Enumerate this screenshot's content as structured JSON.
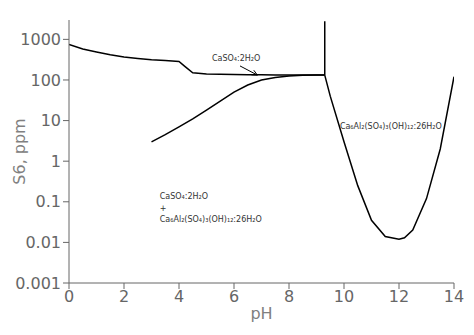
{
  "chart_data": {
    "type": "line",
    "log": "y",
    "xlabel": "pH",
    "ylabel": "S6, ppm",
    "xlim": [
      0,
      14
    ],
    "ylim": [
      0.001,
      3000
    ],
    "xticks": [
      0,
      2,
      4,
      6,
      8,
      10,
      12,
      14
    ],
    "yticks": [
      0.001,
      0.01,
      0.1,
      1,
      10,
      100,
      1000
    ],
    "grid": false,
    "color": "black",
    "series": [
      {
        "x": [
          0,
          0.5,
          1.0,
          1.5,
          2.0,
          2.5,
          3.0,
          3.5,
          4.0,
          4.2,
          4.5,
          5.0,
          5.5,
          6.0,
          6.5,
          7.0,
          7.5,
          8.0,
          8.5,
          9.0,
          9.3
        ],
        "values": [
          750,
          580,
          490,
          420,
          370,
          340,
          315,
          300,
          285,
          220,
          150,
          140,
          138,
          136,
          135,
          134,
          133,
          132,
          132,
          132,
          132
        ]
      },
      {
        "x": [
          3.0,
          3.5,
          4.0,
          4.5,
          5.0,
          5.5,
          6.0,
          6.5,
          7.0,
          7.5,
          8.0,
          8.5,
          9.0,
          9.3
        ],
        "values": [
          3.0,
          4.5,
          7.0,
          11,
          18,
          30,
          50,
          75,
          100,
          115,
          125,
          130,
          132,
          132
        ]
      },
      {
        "x": [
          9.3,
          9.3
        ],
        "values": [
          132,
          2800
        ]
      },
      {
        "x": [
          9.3,
          9.5,
          10.0,
          10.5,
          11.0,
          11.5,
          12.0,
          12.2,
          12.5,
          13.0,
          13.5,
          14.0
        ],
        "values": [
          132,
          40,
          3.0,
          0.25,
          0.035,
          0.014,
          0.012,
          0.013,
          0.02,
          0.12,
          2.0,
          120
        ]
      }
    ],
    "annotations": [
      {
        "text": "CaSO₄:2H₂O",
        "x": 5.2,
        "y": 330,
        "arrow_x": 6.85,
        "arrow_y": 132
      },
      {
        "text": "Ca₆Al₂(SO₄)₃(OH)₁₂:26H₂O",
        "x": 9.85,
        "y": 7.0
      },
      {
        "lines": [
          "CaSO₄:2H₂O",
          "+",
          "Ca₆Al₂(SO₄)₃(OH)₁₂:26H₂O"
        ],
        "x": 3.3,
        "y": 0.07
      }
    ]
  }
}
